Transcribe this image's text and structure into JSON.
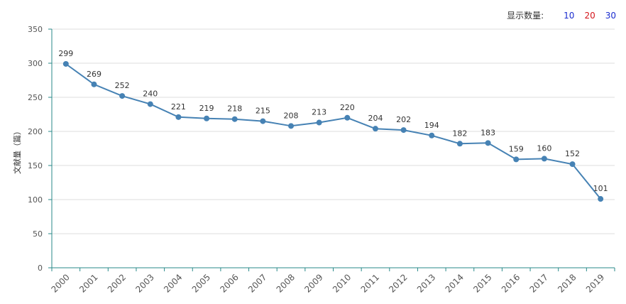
{
  "controls": {
    "label": "显示数量:",
    "options": [
      {
        "text": "10",
        "color": "#1a2ccf"
      },
      {
        "text": "20",
        "color": "#d4151b"
      },
      {
        "text": "30",
        "color": "#1a2ccf"
      }
    ]
  },
  "chart_data": {
    "type": "line",
    "categories": [
      "2000",
      "2001",
      "2002",
      "2003",
      "2004",
      "2005",
      "2006",
      "2007",
      "2008",
      "2009",
      "2010",
      "2011",
      "2012",
      "2013",
      "2014",
      "2015",
      "2016",
      "2017",
      "2018",
      "2019"
    ],
    "series": [
      {
        "values": [
          299,
          269,
          252,
          240,
          221,
          219,
          218,
          215,
          208,
          213,
          220,
          204,
          202,
          194,
          182,
          183,
          159,
          160,
          152,
          101
        ]
      }
    ],
    "ylabel": "文献量（篇）",
    "xlabel": "",
    "ylim": [
      0,
      350
    ],
    "yticks": [
      0,
      50,
      100,
      150,
      200,
      250,
      300,
      350
    ],
    "grid": true,
    "line_color": "#4682b4",
    "axis_color": "#2a8a8a"
  }
}
